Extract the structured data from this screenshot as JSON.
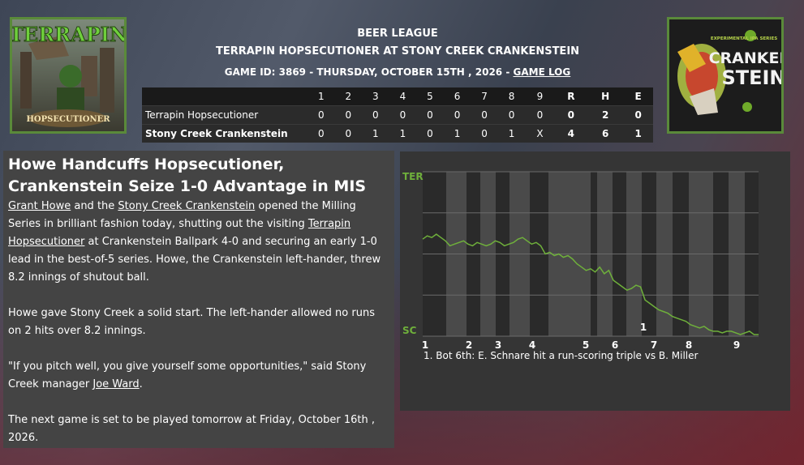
{
  "header": {
    "league": "BEER LEAGUE",
    "matchup": "TERRAPIN HOPSECUTIONER AT STONY CREEK CRANKENSTEIN",
    "game_info": "GAME ID: 3869 - THURSDAY, OCTOBER 15TH , 2026 -",
    "game_log_link": "GAME LOG"
  },
  "logos": {
    "left": {
      "top_text": "TERRAPIN",
      "bottom_text": "HOPSECUTIONER"
    },
    "right": {
      "top_text": "EXPERIMENTAL IPA SERIES",
      "text1": "CRANKEN",
      "text2": "STEIN"
    }
  },
  "boxscore": {
    "headers": [
      "1",
      "2",
      "3",
      "4",
      "5",
      "6",
      "7",
      "8",
      "9",
      "R",
      "H",
      "E"
    ],
    "rows": [
      {
        "team": "Terrapin Hopsecutioner",
        "innings": [
          "0",
          "0",
          "0",
          "0",
          "0",
          "0",
          "0",
          "0",
          "0"
        ],
        "r": "0",
        "h": "2",
        "e": "0"
      },
      {
        "team": "Stony Creek Crankenstein",
        "innings": [
          "0",
          "0",
          "1",
          "1",
          "0",
          "1",
          "0",
          "1",
          "X"
        ],
        "r": "4",
        "h": "6",
        "e": "1"
      }
    ]
  },
  "story": {
    "headline": "Howe Handcuffs Hopsecutioner, Crankenstein Seize 1-0 Advantage in MIS",
    "p1_link1": "Grant Howe",
    "p1_t1": " and the ",
    "p1_link2": "Stony Creek Crankenstein",
    "p1_t2": " opened the Milling Series in brilliant fashion today, shutting out the visiting ",
    "p1_link3": "Terrapin Hopsecutioner",
    "p1_t3": " at Crankenstein Ballpark 4-0 and securing an early 1-0 lead in the best-of-5 series. Howe, the Crankenstein left-hander, threw 8.2 innings of shutout ball.",
    "p2": "Howe gave Stony Creek a solid start. The left-hander allowed no runs on 2 hits over 8.2 innings.",
    "p3_t1": "\"If you pitch well, you give yourself some opportunities,\" said Stony Creek manager ",
    "p3_link": "Joe Ward",
    "p3_t2": ".",
    "p4": "The next game is set to be played tomorrow at Friday, October 16th , 2026."
  },
  "win_prob": {
    "top_label": "TER",
    "bottom_label": "SC",
    "inning_labels": [
      "1",
      "2",
      "3",
      "4",
      "5",
      "6",
      "7",
      "8",
      "9"
    ],
    "marker_label": "1",
    "note": "1. Bot 6th: E. Schnare hit a run-scoring triple vs B. Miller",
    "line_color": "#6fb03b",
    "values": [
      0.41,
      0.39,
      0.4,
      0.38,
      0.4,
      0.42,
      0.45,
      0.44,
      0.43,
      0.42,
      0.44,
      0.45,
      0.43,
      0.44,
      0.45,
      0.44,
      0.42,
      0.43,
      0.45,
      0.44,
      0.43,
      0.41,
      0.4,
      0.42,
      0.44,
      0.43,
      0.45,
      0.5,
      0.49,
      0.51,
      0.5,
      0.52,
      0.51,
      0.53,
      0.56,
      0.58,
      0.6,
      0.59,
      0.61,
      0.58,
      0.62,
      0.6,
      0.66,
      0.68,
      0.7,
      0.72,
      0.71,
      0.69,
      0.7,
      0.78,
      0.8,
      0.82,
      0.84,
      0.85,
      0.86,
      0.88,
      0.89,
      0.9,
      0.91,
      0.93,
      0.94,
      0.95,
      0.94,
      0.96,
      0.97,
      0.97,
      0.98,
      0.97,
      0.97,
      0.98,
      0.99,
      0.98,
      0.97,
      0.99,
      0.99
    ]
  }
}
